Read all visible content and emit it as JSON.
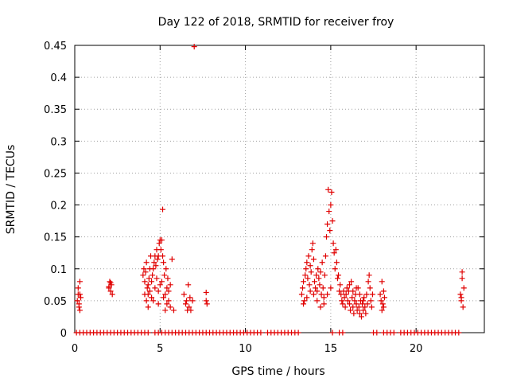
{
  "chart_data": {
    "type": "scatter",
    "title": "Day 122 of 2018, SRMTID for receiver froy",
    "xlabel": "GPS time / hours",
    "ylabel": "SRMTID / TECUs",
    "xlim": [
      0,
      24
    ],
    "ylim": [
      0,
      0.45
    ],
    "xticks": [
      0,
      5,
      10,
      15,
      20
    ],
    "yticks": [
      0,
      0.05,
      0.1,
      0.15,
      0.2,
      0.25,
      0.3,
      0.35,
      0.4,
      0.45
    ],
    "xtick_labels": [
      "0",
      "5",
      "10",
      "15",
      "20"
    ],
    "ytick_labels": [
      "0",
      "0.05",
      "0.1",
      "0.15",
      "0.2",
      "0.25",
      "0.3",
      "0.35",
      "0.4",
      "0.45"
    ],
    "grid": true,
    "series": [
      {
        "name": "SRMTID",
        "color": "#e00000",
        "marker": "plus",
        "points": [
          [
            0.15,
            0.05
          ],
          [
            0.2,
            0.07
          ],
          [
            0.25,
            0.04
          ],
          [
            0.3,
            0.06
          ],
          [
            0.3,
            0.08
          ],
          [
            0.35,
            0.055
          ],
          [
            0.25,
            0.045
          ],
          [
            0.2,
            0.06
          ],
          [
            0.3,
            0.035
          ],
          [
            2.0,
            0.07
          ],
          [
            2.05,
            0.08
          ],
          [
            2.1,
            0.065
          ],
          [
            2.15,
            0.075
          ],
          [
            2.2,
            0.06
          ],
          [
            2.1,
            0.078
          ],
          [
            2.0,
            0.072
          ],
          [
            4.0,
            0.09
          ],
          [
            4.05,
            0.1
          ],
          [
            4.1,
            0.08
          ],
          [
            4.15,
            0.095
          ],
          [
            4.2,
            0.11
          ],
          [
            4.25,
            0.07
          ],
          [
            4.3,
            0.06
          ],
          [
            4.35,
            0.085
          ],
          [
            4.4,
            0.1
          ],
          [
            4.45,
            0.12
          ],
          [
            4.1,
            0.06
          ],
          [
            4.2,
            0.05
          ],
          [
            4.3,
            0.04
          ],
          [
            4.4,
            0.065
          ],
          [
            4.5,
            0.08
          ],
          [
            4.55,
            0.09
          ],
          [
            4.6,
            0.1
          ],
          [
            4.65,
            0.11
          ],
          [
            4.7,
            0.12
          ],
          [
            4.75,
            0.105
          ],
          [
            4.8,
            0.13
          ],
          [
            4.85,
            0.115
          ],
          [
            4.9,
            0.12
          ],
          [
            4.95,
            0.14
          ],
          [
            5.0,
            0.145
          ],
          [
            5.05,
            0.13
          ],
          [
            5.1,
            0.145
          ],
          [
            5.15,
            0.12
          ],
          [
            5.2,
            0.11
          ],
          [
            4.6,
            0.05
          ],
          [
            4.7,
            0.07
          ],
          [
            4.8,
            0.085
          ],
          [
            4.9,
            0.065
          ],
          [
            5.0,
            0.075
          ],
          [
            5.1,
            0.08
          ],
          [
            5.2,
            0.055
          ],
          [
            5.3,
            0.06
          ],
          [
            5.4,
            0.07
          ],
          [
            5.15,
            0.193
          ],
          [
            5.3,
            0.035
          ],
          [
            5.4,
            0.045
          ],
          [
            5.5,
            0.05
          ],
          [
            5.6,
            0.04
          ],
          [
            5.7,
            0.115
          ],
          [
            5.6,
            0.075
          ],
          [
            5.5,
            0.065
          ],
          [
            5.8,
            0.035
          ],
          [
            4.3,
            0.075
          ],
          [
            4.5,
            0.055
          ],
          [
            4.9,
            0.045
          ],
          [
            5.25,
            0.09
          ],
          [
            5.35,
            0.1
          ],
          [
            5.45,
            0.085
          ],
          [
            6.4,
            0.06
          ],
          [
            6.5,
            0.045
          ],
          [
            6.55,
            0.05
          ],
          [
            6.6,
            0.035
          ],
          [
            6.65,
            0.075
          ],
          [
            6.7,
            0.04
          ],
          [
            6.75,
            0.055
          ],
          [
            6.8,
            0.035
          ],
          [
            6.9,
            0.05
          ],
          [
            7.0,
            0.448
          ],
          [
            7.7,
            0.063
          ],
          [
            7.75,
            0.045
          ],
          [
            7.7,
            0.05
          ],
          [
            13.3,
            0.06
          ],
          [
            13.35,
            0.07
          ],
          [
            13.4,
            0.08
          ],
          [
            13.45,
            0.05
          ],
          [
            13.5,
            0.09
          ],
          [
            13.55,
            0.1
          ],
          [
            13.6,
            0.11
          ],
          [
            13.65,
            0.085
          ],
          [
            13.7,
            0.12
          ],
          [
            13.75,
            0.075
          ],
          [
            13.8,
            0.105
          ],
          [
            13.85,
            0.095
          ],
          [
            13.9,
            0.13
          ],
          [
            13.95,
            0.14
          ],
          [
            14.0,
            0.115
          ],
          [
            14.05,
            0.08
          ],
          [
            14.1,
            0.07
          ],
          [
            14.15,
            0.09
          ],
          [
            14.2,
            0.065
          ],
          [
            14.25,
            0.1
          ],
          [
            14.3,
            0.085
          ],
          [
            14.35,
            0.075
          ],
          [
            14.4,
            0.095
          ],
          [
            14.45,
            0.06
          ],
          [
            14.5,
            0.11
          ],
          [
            14.55,
            0.07
          ],
          [
            14.6,
            0.055
          ],
          [
            14.65,
            0.09
          ],
          [
            14.7,
            0.12
          ],
          [
            14.75,
            0.15
          ],
          [
            14.8,
            0.17
          ],
          [
            14.85,
            0.224
          ],
          [
            14.9,
            0.19
          ],
          [
            14.95,
            0.16
          ],
          [
            15.0,
            0.2
          ],
          [
            15.05,
            0.22
          ],
          [
            15.1,
            0.175
          ],
          [
            15.15,
            0.14
          ],
          [
            15.2,
            0.125
          ],
          [
            15.25,
            0.1
          ],
          [
            15.3,
            0.13
          ],
          [
            15.35,
            0.11
          ],
          [
            15.4,
            0.085
          ],
          [
            15.45,
            0.09
          ],
          [
            15.5,
            0.065
          ],
          [
            13.4,
            0.045
          ],
          [
            13.6,
            0.055
          ],
          [
            13.8,
            0.065
          ],
          [
            14.0,
            0.06
          ],
          [
            14.2,
            0.05
          ],
          [
            14.4,
            0.04
          ],
          [
            14.6,
            0.045
          ],
          [
            14.8,
            0.06
          ],
          [
            15.0,
            0.07
          ],
          [
            15.55,
            0.075
          ],
          [
            15.6,
            0.06
          ],
          [
            15.65,
            0.05
          ],
          [
            15.7,
            0.045
          ],
          [
            15.75,
            0.065
          ],
          [
            15.8,
            0.055
          ],
          [
            15.85,
            0.04
          ],
          [
            15.9,
            0.06
          ],
          [
            15.95,
            0.07
          ],
          [
            16.0,
            0.05
          ],
          [
            16.05,
            0.065
          ],
          [
            16.1,
            0.045
          ],
          [
            16.15,
            0.035
          ],
          [
            16.2,
            0.08
          ],
          [
            16.25,
            0.055
          ],
          [
            16.3,
            0.04
          ],
          [
            16.35,
            0.03
          ],
          [
            16.4,
            0.05
          ],
          [
            16.45,
            0.06
          ],
          [
            16.5,
            0.045
          ],
          [
            16.55,
            0.035
          ],
          [
            16.6,
            0.07
          ],
          [
            16.65,
            0.04
          ],
          [
            16.7,
            0.03
          ],
          [
            16.75,
            0.05
          ],
          [
            16.8,
            0.025
          ],
          [
            16.85,
            0.045
          ],
          [
            16.9,
            0.035
          ],
          [
            16.95,
            0.055
          ],
          [
            17.0,
            0.04
          ],
          [
            17.05,
            0.03
          ],
          [
            17.1,
            0.06
          ],
          [
            17.15,
            0.045
          ],
          [
            17.2,
            0.08
          ],
          [
            17.25,
            0.09
          ],
          [
            17.3,
            0.07
          ],
          [
            17.35,
            0.05
          ],
          [
            17.4,
            0.04
          ],
          [
            17.45,
            0.06
          ],
          [
            16.1,
            0.075
          ],
          [
            16.3,
            0.065
          ],
          [
            16.5,
            0.07
          ],
          [
            16.7,
            0.06
          ],
          [
            16.9,
            0.05
          ],
          [
            17.9,
            0.06
          ],
          [
            17.95,
            0.05
          ],
          [
            18.0,
            0.08
          ],
          [
            18.05,
            0.045
          ],
          [
            18.1,
            0.04
          ],
          [
            18.15,
            0.055
          ],
          [
            18.0,
            0.035
          ],
          [
            18.1,
            0.065
          ],
          [
            22.6,
            0.06
          ],
          [
            22.65,
            0.05
          ],
          [
            22.7,
            0.095
          ],
          [
            22.75,
            0.04
          ],
          [
            22.8,
            0.07
          ],
          [
            22.7,
            0.085
          ],
          [
            22.65,
            0.055
          ],
          [
            0.1,
            0
          ],
          [
            0.3,
            0
          ],
          [
            0.5,
            0
          ],
          [
            0.7,
            0
          ],
          [
            0.9,
            0
          ],
          [
            1.1,
            0
          ],
          [
            1.3,
            0
          ],
          [
            1.5,
            0
          ],
          [
            1.7,
            0
          ],
          [
            1.9,
            0
          ],
          [
            2.1,
            0
          ],
          [
            2.3,
            0
          ],
          [
            2.5,
            0
          ],
          [
            2.7,
            0
          ],
          [
            2.9,
            0
          ],
          [
            3.1,
            0
          ],
          [
            3.3,
            0
          ],
          [
            3.5,
            0
          ],
          [
            3.7,
            0
          ],
          [
            3.9,
            0
          ],
          [
            4.1,
            0
          ],
          [
            4.3,
            0
          ],
          [
            4.7,
            0
          ],
          [
            4.9,
            0
          ],
          [
            5.1,
            0
          ],
          [
            5.3,
            0
          ],
          [
            5.5,
            0
          ],
          [
            5.7,
            0
          ],
          [
            5.9,
            0
          ],
          [
            6.1,
            0
          ],
          [
            6.3,
            0
          ],
          [
            6.5,
            0
          ],
          [
            6.7,
            0
          ],
          [
            6.9,
            0
          ],
          [
            7.1,
            0
          ],
          [
            7.3,
            0
          ],
          [
            7.5,
            0
          ],
          [
            7.7,
            0
          ],
          [
            7.9,
            0
          ],
          [
            8.1,
            0
          ],
          [
            8.3,
            0
          ],
          [
            8.5,
            0
          ],
          [
            8.7,
            0
          ],
          [
            8.9,
            0
          ],
          [
            9.1,
            0
          ],
          [
            9.3,
            0
          ],
          [
            9.5,
            0
          ],
          [
            9.7,
            0
          ],
          [
            9.9,
            0
          ],
          [
            10.1,
            0
          ],
          [
            10.3,
            0
          ],
          [
            10.5,
            0
          ],
          [
            10.7,
            0
          ],
          [
            10.9,
            0
          ],
          [
            11.3,
            0
          ],
          [
            11.5,
            0
          ],
          [
            11.7,
            0
          ],
          [
            11.9,
            0
          ],
          [
            12.1,
            0
          ],
          [
            12.3,
            0
          ],
          [
            12.5,
            0
          ],
          [
            12.7,
            0
          ],
          [
            12.9,
            0
          ],
          [
            13.1,
            0
          ],
          [
            15.1,
            0
          ],
          [
            15.5,
            0
          ],
          [
            15.7,
            0
          ],
          [
            17.5,
            0
          ],
          [
            17.7,
            0
          ],
          [
            18.1,
            0
          ],
          [
            18.3,
            0
          ],
          [
            18.5,
            0
          ],
          [
            18.7,
            0
          ],
          [
            19.1,
            0
          ],
          [
            19.3,
            0
          ],
          [
            19.5,
            0
          ],
          [
            19.7,
            0
          ],
          [
            19.9,
            0
          ],
          [
            20.1,
            0
          ],
          [
            20.3,
            0
          ],
          [
            20.5,
            0
          ],
          [
            20.7,
            0
          ],
          [
            20.9,
            0
          ],
          [
            21.1,
            0
          ],
          [
            21.3,
            0
          ],
          [
            21.5,
            0
          ],
          [
            21.7,
            0
          ],
          [
            21.9,
            0
          ],
          [
            22.1,
            0
          ],
          [
            22.3,
            0
          ],
          [
            22.5,
            0
          ]
        ]
      }
    ]
  }
}
